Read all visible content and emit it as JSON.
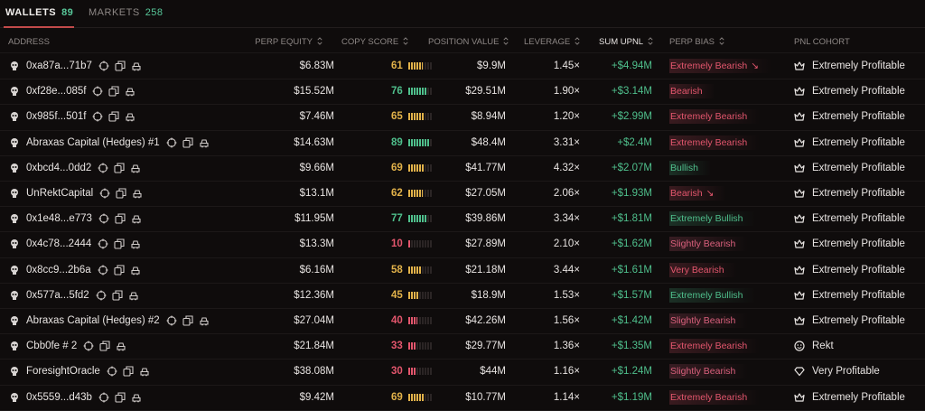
{
  "tabs": [
    {
      "label": "WALLETS",
      "count": 89
    },
    {
      "label": "MARKETS",
      "count": 258
    }
  ],
  "columns": [
    "ADDRESS",
    "PERP EQUITY",
    "COPY SCORE",
    "POSITION VALUE",
    "LEVERAGE",
    "SUM UPNL",
    "PERP BIAS",
    "PNL COHORT"
  ],
  "rows": [
    {
      "address": "0xa87a...71b7",
      "equity": "$6.83M",
      "score": 61,
      "score_color": "#e2b24a",
      "position": "$9.9M",
      "leverage": "1.45×",
      "upnl": "+$4.94M",
      "bias": "Extremely Bearish",
      "trend": "↘",
      "bias_color": "#e3566d",
      "cohort": "Extremely Profitable",
      "cohort_icon": "crown"
    },
    {
      "address": "0xf28e...085f",
      "equity": "$15.52M",
      "score": 76,
      "score_color": "#4fbf8c",
      "position": "$29.51M",
      "leverage": "1.90×",
      "upnl": "+$3.14M",
      "bias": "Bearish",
      "bias_color": "#e3566d",
      "cohort": "Extremely Profitable",
      "cohort_icon": "crown"
    },
    {
      "address": "0x985f...501f",
      "equity": "$7.46M",
      "score": 65,
      "score_color": "#e2b24a",
      "position": "$8.94M",
      "leverage": "1.20×",
      "upnl": "+$2.99M",
      "bias": "Extremely Bearish",
      "bias_color": "#e3566d",
      "cohort": "Extremely Profitable",
      "cohort_icon": "crown"
    },
    {
      "address": "Abraxas Capital (Hedges) #1",
      "equity": "$14.63M",
      "score": 89,
      "score_color": "#4fbf8c",
      "position": "$48.4M",
      "leverage": "3.31×",
      "upnl": "+$2.4M",
      "bias": "Extremely Bearish",
      "bias_color": "#e3566d",
      "cohort": "Extremely Profitable",
      "cohort_icon": "crown"
    },
    {
      "address": "0xbcd4...0dd2",
      "equity": "$9.66M",
      "score": 69,
      "score_color": "#e2b24a",
      "position": "$41.77M",
      "leverage": "4.32×",
      "upnl": "+$2.07M",
      "bias": "Bullish",
      "bias_color": "#4fbf8c",
      "cohort": "Extremely Profitable",
      "cohort_icon": "crown"
    },
    {
      "address": "UnRektCapital",
      "equity": "$13.1M",
      "score": 62,
      "score_color": "#e2b24a",
      "position": "$27.05M",
      "leverage": "2.06×",
      "upnl": "+$1.93M",
      "bias": "Bearish",
      "trend": "↘",
      "bias_color": "#e3566d",
      "cohort": "Extremely Profitable",
      "cohort_icon": "crown"
    },
    {
      "address": "0x1e48...e773",
      "equity": "$11.95M",
      "score": 77,
      "score_color": "#4fbf8c",
      "position": "$39.86M",
      "leverage": "3.34×",
      "upnl": "+$1.81M",
      "bias": "Extremely Bullish",
      "bias_color": "#4fbf8c",
      "cohort": "Extremely Profitable",
      "cohort_icon": "crown"
    },
    {
      "address": "0x4c78...2444",
      "equity": "$13.3M",
      "score": 10,
      "score_color": "#e3566d",
      "position": "$27.89M",
      "leverage": "2.10×",
      "upnl": "+$1.62M",
      "bias": "Slightly Bearish",
      "bias_color": "#d9607c",
      "cohort": "Extremely Profitable",
      "cohort_icon": "crown"
    },
    {
      "address": "0x8cc9...2b6a",
      "equity": "$6.16M",
      "score": 58,
      "score_color": "#e2b24a",
      "position": "$21.18M",
      "leverage": "3.44×",
      "upnl": "+$1.61M",
      "bias": "Very Bearish",
      "bias_color": "#e3566d",
      "cohort": "Extremely Profitable",
      "cohort_icon": "crown"
    },
    {
      "address": "0x577a...5fd2",
      "equity": "$12.36M",
      "score": 45,
      "score_color": "#e2b24a",
      "position": "$18.9M",
      "leverage": "1.53×",
      "upnl": "+$1.57M",
      "bias": "Extremely Bullish",
      "bias_color": "#4fbf8c",
      "cohort": "Extremely Profitable",
      "cohort_icon": "crown"
    },
    {
      "address": "Abraxas Capital (Hedges) #2",
      "equity": "$27.04M",
      "score": 40,
      "score_color": "#e3566d",
      "position": "$42.26M",
      "leverage": "1.56×",
      "upnl": "+$1.42M",
      "bias": "Slightly Bearish",
      "bias_color": "#d9607c",
      "cohort": "Extremely Profitable",
      "cohort_icon": "crown"
    },
    {
      "address": "Cbb0fe # 2",
      "equity": "$21.84M",
      "score": 33,
      "score_color": "#e3566d",
      "position": "$29.77M",
      "leverage": "1.36×",
      "upnl": "+$1.35M",
      "bias": "Extremely Bearish",
      "bias_color": "#e3566d",
      "cohort": "Rekt",
      "cohort_icon": "smile"
    },
    {
      "address": "ForesightOracle",
      "equity": "$38.08M",
      "score": 30,
      "score_color": "#e3566d",
      "position": "$44M",
      "leverage": "1.16×",
      "upnl": "+$1.24M",
      "bias": "Slightly Bearish",
      "bias_color": "#d9607c",
      "cohort": "Very Profitable",
      "cohort_icon": "diamond"
    },
    {
      "address": "0x5559...d43b",
      "equity": "$9.42M",
      "score": 69,
      "score_color": "#e2b24a",
      "position": "$10.77M",
      "leverage": "1.14×",
      "upnl": "+$1.19M",
      "bias": "Extremely Bearish",
      "bias_color": "#e3566d",
      "cohort": "Extremely Profitable",
      "cohort_icon": "crown"
    }
  ]
}
